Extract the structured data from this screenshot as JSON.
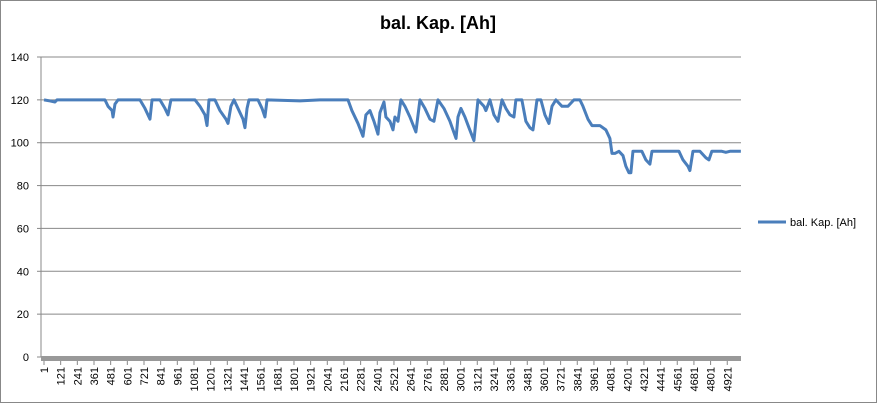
{
  "chart_data": {
    "type": "line",
    "title": "bal. Kap. [Ah]",
    "x": [
      1,
      44,
      80,
      95,
      440,
      462,
      491,
      498,
      512,
      534,
      692,
      728,
      764,
      779,
      836,
      872,
      894,
      915,
      1088,
      1124,
      1160,
      1175,
      1189,
      1232,
      1268,
      1311,
      1326,
      1347,
      1369,
      1398,
      1434,
      1448,
      1463,
      1477,
      1542,
      1571,
      1592,
      1607,
      1844,
      1988,
      2190,
      2218,
      2262,
      2298,
      2319,
      2348,
      2377,
      2406,
      2420,
      2449,
      2463,
      2492,
      2514,
      2528,
      2550,
      2571,
      2600,
      2636,
      2679,
      2708,
      2744,
      2780,
      2809,
      2823,
      2838,
      2881,
      2924,
      2968,
      2982,
      3003,
      3032,
      3061,
      3097,
      3126,
      3169,
      3183,
      3212,
      3241,
      3270,
      3299,
      3327,
      3356,
      3385,
      3399,
      3442,
      3471,
      3500,
      3522,
      3551,
      3579,
      3608,
      3637,
      3659,
      3687,
      3731,
      3774,
      3817,
      3860,
      3882,
      3918,
      3947,
      4004,
      4047,
      4076,
      4091,
      4112,
      4141,
      4170,
      4191,
      4213,
      4227,
      4242,
      4306,
      4335,
      4364,
      4379,
      4472,
      4573,
      4602,
      4638,
      4652,
      4674,
      4724,
      4767,
      4789,
      4810,
      4882,
      4911,
      4940,
      5019
    ],
    "series": [
      {
        "name": "bal. Kap. [Ah]",
        "color": "#4a7ebb",
        "values": [
          120,
          119.5,
          119,
          120,
          120,
          117,
          115,
          112,
          118,
          120,
          120,
          116,
          111,
          120,
          120,
          116,
          113,
          120,
          120,
          117,
          113,
          108,
          120,
          120,
          115,
          111,
          109,
          117,
          120,
          116,
          111,
          107,
          116,
          120,
          120,
          116,
          112,
          120,
          119.5,
          120,
          120,
          115,
          109,
          103,
          113,
          115,
          110,
          104,
          114,
          119,
          112,
          110,
          106,
          112,
          110,
          120,
          117,
          112,
          105,
          120,
          116,
          111,
          110,
          115,
          120,
          116,
          110,
          102,
          112,
          116,
          112,
          107,
          101,
          120,
          117,
          115,
          120,
          113,
          110,
          120,
          116,
          113,
          112,
          120,
          120,
          110,
          107,
          106,
          120,
          120,
          113,
          109,
          117,
          120,
          117,
          117,
          120,
          120,
          117,
          111,
          108,
          108,
          106,
          102,
          95,
          95,
          96,
          94,
          89,
          86,
          86,
          96,
          96,
          92,
          90,
          96,
          96,
          96,
          92,
          89,
          87,
          96,
          96,
          93,
          92,
          96,
          96,
          95.5,
          96,
          96
        ]
      }
    ],
    "xlim": [
      1,
      5020
    ],
    "xticks": [
      1,
      121,
      241,
      361,
      481,
      601,
      721,
      841,
      961,
      1081,
      1201,
      1321,
      1441,
      1561,
      1681,
      1801,
      1921,
      2041,
      2161,
      2281,
      2401,
      2521,
      2641,
      2761,
      2881,
      3001,
      3121,
      3241,
      3361,
      3481,
      3601,
      3721,
      3841,
      3961,
      4081,
      4201,
      4321,
      4441,
      4561,
      4681,
      4801,
      4921
    ],
    "ylim": [
      0,
      140
    ],
    "yticks": [
      0,
      20,
      40,
      60,
      80,
      100,
      120,
      140
    ],
    "grid": true,
    "legend": "right"
  }
}
